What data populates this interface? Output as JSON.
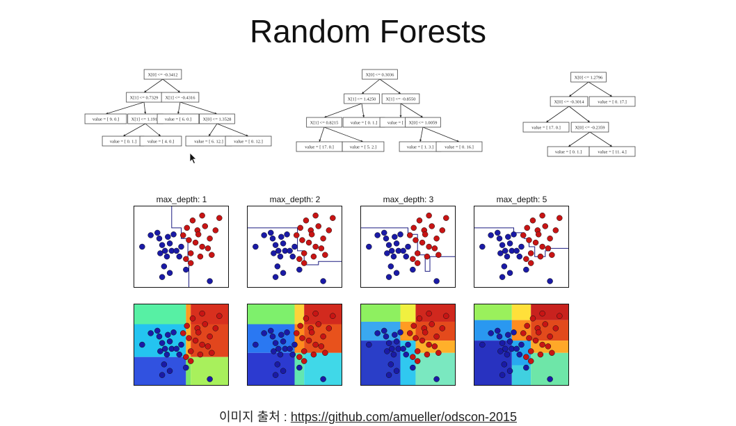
{
  "slide": {
    "title": "Random Forests",
    "caption_prefix": "이미지 출처 : ",
    "caption_link": "https://github.com/amueller/odscon-2015"
  },
  "trees": [
    {
      "nodes": [
        "X[0] <= -0.3412",
        "X[1] <= 0.7329",
        "X[1] <= -0.4316",
        "value = [ 9.  0.]",
        "X[1] <= 1.1913",
        "value = [ 6.  0.]",
        "X[0] <= 1.3528",
        "value = [ 0.  1.]",
        "value = [ 4.  0.]",
        "value = [  6.  12.]",
        "value = [  0.  12.]"
      ]
    },
    {
      "nodes": [
        "X[0] <= 0.3036",
        "X[1] <= 1.4250",
        "X[1] <= -0.8550",
        "X[1] <= 0.8215",
        "value = [ 0.  1.]",
        "value = [ 5.  0.]",
        "X[0] <= 1.0059",
        "value = [ 17.   0.]",
        "value = [ 5.  2.]",
        "value = [ 1.  3.]",
        "value = [  0.  16.]"
      ]
    },
    {
      "nodes": [
        "X[0] <= 1.2796",
        "X[0] <= -0.3014",
        "value = [  0.  17.]",
        "value = [ 17.   0.]",
        "X[0] <= -0.2359",
        "value = [ 0.  1.]",
        "value = [ 11.   4.]"
      ]
    }
  ],
  "panels": [
    {
      "title": "max_depth: 1"
    },
    {
      "title": "max_depth: 2"
    },
    {
      "title": "max_depth: 3"
    },
    {
      "title": "max_depth: 5"
    }
  ],
  "chart_data": {
    "type": "scatter",
    "classes": [
      {
        "color": "#1a1aa6"
      },
      {
        "color": "#c81414"
      }
    ],
    "points": [
      {
        "x": 0.09,
        "y": 0.5,
        "c": 0
      },
      {
        "x": 0.18,
        "y": 0.36,
        "c": 0
      },
      {
        "x": 0.25,
        "y": 0.33,
        "c": 0
      },
      {
        "x": 0.27,
        "y": 0.4,
        "c": 0
      },
      {
        "x": 0.3,
        "y": 0.48,
        "c": 0
      },
      {
        "x": 0.33,
        "y": 0.55,
        "c": 0
      },
      {
        "x": 0.35,
        "y": 0.62,
        "c": 0
      },
      {
        "x": 0.32,
        "y": 0.74,
        "c": 0
      },
      {
        "x": 0.38,
        "y": 0.46,
        "c": 0
      },
      {
        "x": 0.4,
        "y": 0.55,
        "c": 0
      },
      {
        "x": 0.42,
        "y": 0.35,
        "c": 0
      },
      {
        "x": 0.45,
        "y": 0.55,
        "c": 0
      },
      {
        "x": 0.48,
        "y": 0.62,
        "c": 0
      },
      {
        "x": 0.5,
        "y": 0.5,
        "c": 0
      },
      {
        "x": 0.3,
        "y": 0.87,
        "c": 0
      },
      {
        "x": 0.38,
        "y": 0.82,
        "c": 0
      },
      {
        "x": 0.55,
        "y": 0.78,
        "c": 0
      },
      {
        "x": 0.8,
        "y": 0.92,
        "c": 0
      },
      {
        "x": 0.28,
        "y": 0.58,
        "c": 0
      },
      {
        "x": 0.36,
        "y": 0.38,
        "c": 0
      },
      {
        "x": 0.56,
        "y": 0.27,
        "c": 1
      },
      {
        "x": 0.62,
        "y": 0.18,
        "c": 1
      },
      {
        "x": 0.67,
        "y": 0.3,
        "c": 1
      },
      {
        "x": 0.72,
        "y": 0.12,
        "c": 1
      },
      {
        "x": 0.75,
        "y": 0.25,
        "c": 1
      },
      {
        "x": 0.8,
        "y": 0.4,
        "c": 1
      },
      {
        "x": 0.78,
        "y": 0.52,
        "c": 1
      },
      {
        "x": 0.72,
        "y": 0.5,
        "c": 1
      },
      {
        "x": 0.65,
        "y": 0.45,
        "c": 1
      },
      {
        "x": 0.7,
        "y": 0.62,
        "c": 1
      },
      {
        "x": 0.6,
        "y": 0.58,
        "c": 1
      },
      {
        "x": 0.58,
        "y": 0.42,
        "c": 1
      },
      {
        "x": 0.52,
        "y": 0.36,
        "c": 1
      },
      {
        "x": 0.82,
        "y": 0.6,
        "c": 1
      },
      {
        "x": 0.86,
        "y": 0.3,
        "c": 1
      },
      {
        "x": 0.9,
        "y": 0.15,
        "c": 1
      },
      {
        "x": 0.68,
        "y": 0.35,
        "c": 1
      },
      {
        "x": 0.55,
        "y": 0.65,
        "c": 1
      },
      {
        "x": 0.6,
        "y": 0.7,
        "c": 1
      }
    ]
  }
}
